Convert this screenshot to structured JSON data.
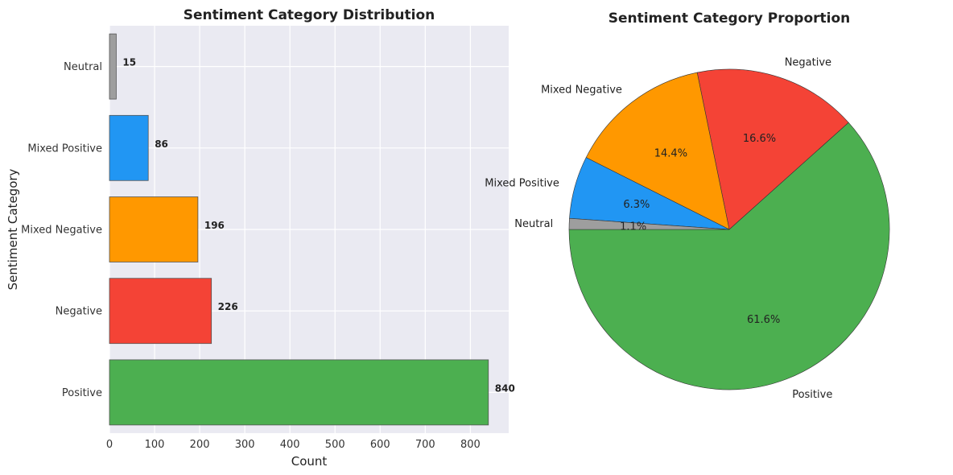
{
  "chart_data": [
    {
      "type": "bar",
      "orientation": "horizontal",
      "title": "Sentiment Category Distribution",
      "xlabel": "Count",
      "ylabel": "Sentiment Category",
      "categories": [
        "Positive",
        "Negative",
        "Mixed Negative",
        "Mixed Positive",
        "Neutral"
      ],
      "values": [
        840,
        226,
        196,
        86,
        15
      ],
      "value_labels": [
        "840",
        "226",
        "196",
        "86",
        "15"
      ],
      "colors": [
        "#4caf50",
        "#f44336",
        "#ff9800",
        "#2196f3",
        "#9e9e9e"
      ],
      "xlim": [
        0,
        885
      ],
      "xticks": [
        0,
        100,
        200,
        300,
        400,
        500,
        600,
        700,
        800
      ],
      "xtick_labels": [
        "0",
        "100",
        "200",
        "300",
        "400",
        "500",
        "600",
        "700",
        "800"
      ],
      "grid": true
    },
    {
      "type": "pie",
      "title": "Sentiment Category Proportion",
      "labels": [
        "Positive",
        "Negative",
        "Mixed Negative",
        "Mixed Positive",
        "Neutral"
      ],
      "values": [
        840,
        226,
        196,
        86,
        15
      ],
      "pct_labels": [
        "61.6%",
        "16.6%",
        "14.4%",
        "6.3%",
        "1.1%"
      ],
      "colors": [
        "#4caf50",
        "#f44336",
        "#ff9800",
        "#2196f3",
        "#9e9e9e"
      ]
    }
  ]
}
